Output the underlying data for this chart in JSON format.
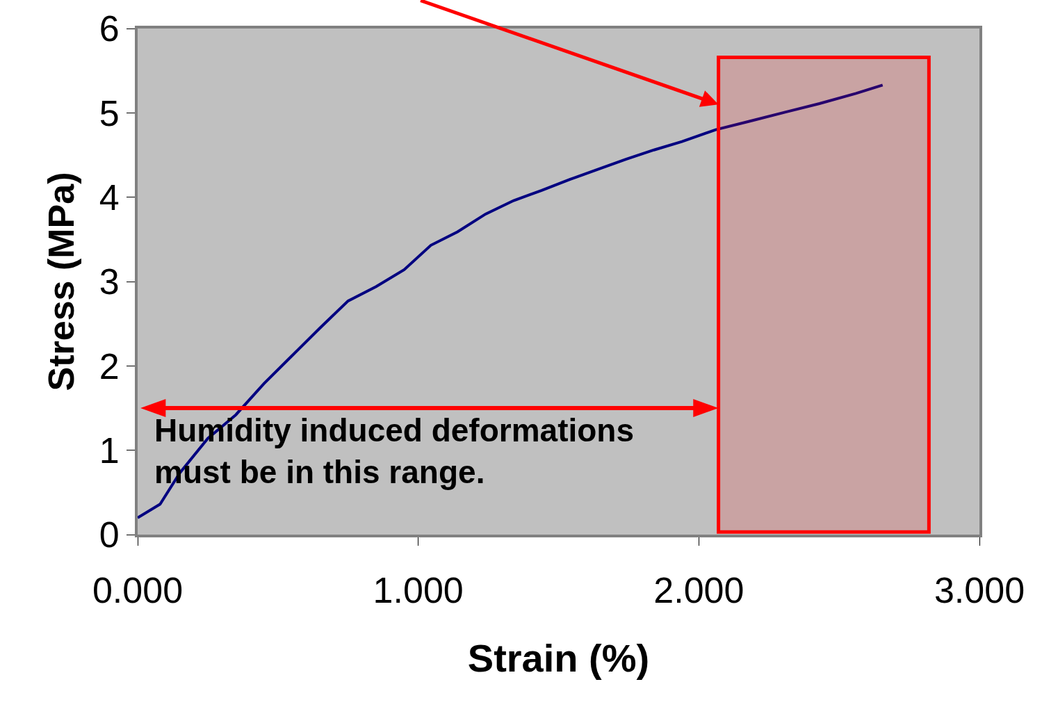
{
  "chart_data": {
    "type": "line",
    "xlabel": "Strain (%)",
    "ylabel": "Stress (MPa)",
    "x": [
      0.0,
      0.08,
      0.15,
      0.25,
      0.35,
      0.45,
      0.55,
      0.65,
      0.75,
      0.85,
      0.95,
      1.045,
      1.14,
      1.24,
      1.34,
      1.44,
      1.54,
      1.64,
      1.74,
      1.84,
      1.94,
      2.06,
      2.18,
      2.31,
      2.43,
      2.56,
      2.655
    ],
    "series": [
      {
        "color": "#000080",
        "values": [
          0.2,
          0.36,
          0.73,
          1.14,
          1.42,
          1.79,
          2.12,
          2.45,
          2.77,
          2.94,
          3.14,
          3.43,
          3.59,
          3.8,
          3.96,
          4.08,
          4.21,
          4.33,
          4.45,
          4.56,
          4.66,
          4.8,
          4.9,
          5.01,
          5.11,
          5.23,
          5.33
        ]
      }
    ],
    "xlim": [
      0,
      3
    ],
    "xticks": [
      {
        "value": 0,
        "label": "0.000"
      },
      {
        "value": 1,
        "label": "1.000"
      },
      {
        "value": 2,
        "label": "2.000"
      },
      {
        "value": 3,
        "label": "3.000"
      }
    ],
    "ylim": [
      0,
      6
    ],
    "yticks": [
      0,
      1,
      2,
      3,
      4,
      5,
      6
    ],
    "bands": [
      {
        "axis": "x",
        "from": 2.07,
        "to": 2.82,
        "label": null,
        "color": "#ff0000"
      }
    ],
    "annotations": [
      "Humidity induced deformations\nmust be in this range."
    ],
    "grid": false,
    "marker": "none",
    "line_style": "solid"
  }
}
